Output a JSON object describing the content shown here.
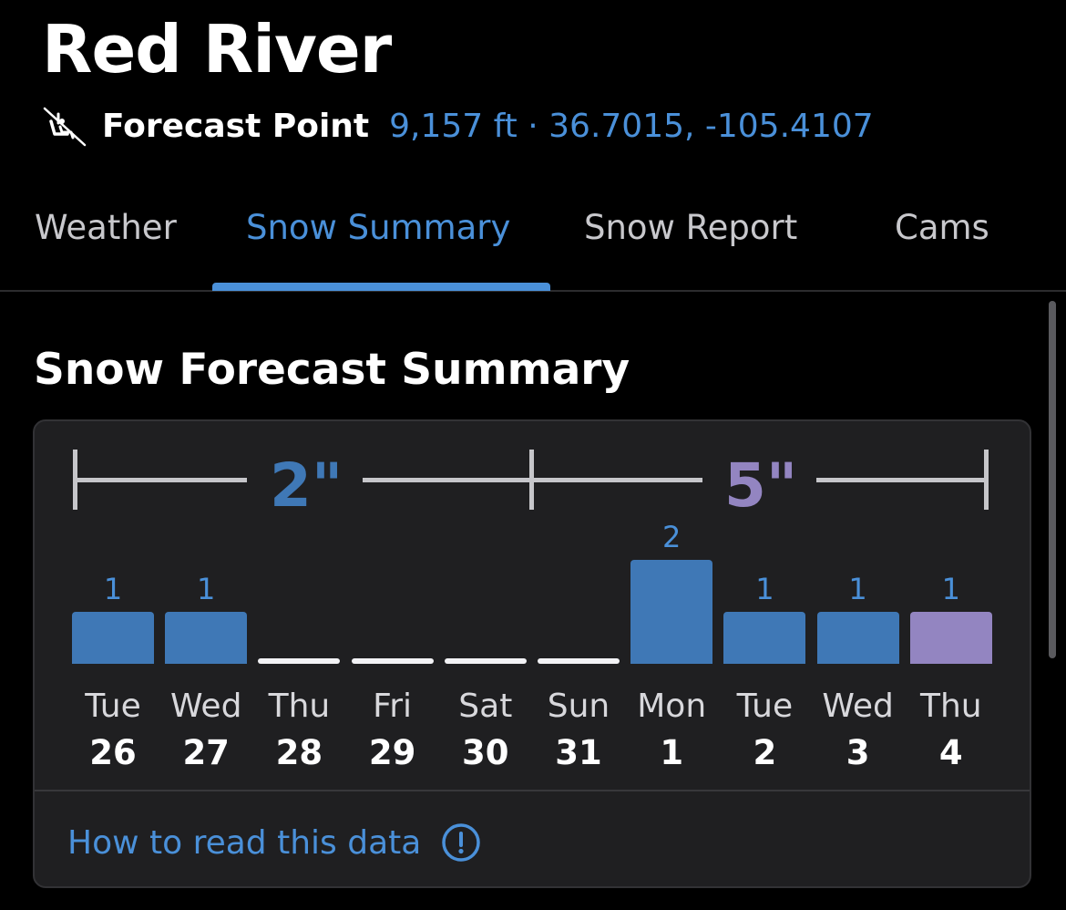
{
  "header": {
    "title": "Red River",
    "point_label": "Forecast Point",
    "point_meta": "9,157 ft · 36.7015, -105.4107",
    "lift_icon": "chairlift-icon"
  },
  "tabs": [
    {
      "label": "Weather",
      "active": false
    },
    {
      "label": "Snow Summary",
      "active": true
    },
    {
      "label": "Snow Report",
      "active": false
    },
    {
      "label": "Cams",
      "active": false
    }
  ],
  "section": {
    "title": "Snow Forecast Summary",
    "help_link": "How to read this data",
    "help_icon": "info-circle-icon"
  },
  "colors": {
    "accent": "#4a90d9",
    "bar_blue": "#3f78b6",
    "bar_purple": "#9385c1",
    "range_purple": "#9385c1"
  },
  "chart_data": {
    "type": "bar",
    "categories": [
      "Tue 26",
      "Wed 27",
      "Thu 28",
      "Fri 29",
      "Sat 30",
      "Sun 31",
      "Mon 1",
      "Tue 2",
      "Wed 3",
      "Thu 4"
    ],
    "days": [
      {
        "name": "Tue",
        "num": "26",
        "value": 1,
        "label": "1",
        "color": "blue"
      },
      {
        "name": "Wed",
        "num": "27",
        "value": 1,
        "label": "1",
        "color": "blue"
      },
      {
        "name": "Thu",
        "num": "28",
        "value": 0,
        "label": "",
        "color": "white"
      },
      {
        "name": "Fri",
        "num": "29",
        "value": 0,
        "label": "",
        "color": "white"
      },
      {
        "name": "Sat",
        "num": "30",
        "value": 0,
        "label": "",
        "color": "white"
      },
      {
        "name": "Sun",
        "num": "31",
        "value": 0,
        "label": "",
        "color": "white"
      },
      {
        "name": "Mon",
        "num": "1",
        "value": 2,
        "label": "2",
        "color": "blue"
      },
      {
        "name": "Tue",
        "num": "2",
        "value": 1,
        "label": "1",
        "color": "blue"
      },
      {
        "name": "Wed",
        "num": "3",
        "value": 1,
        "label": "1",
        "color": "blue"
      },
      {
        "name": "Thu",
        "num": "4",
        "value": 1,
        "label": "1",
        "color": "purple"
      }
    ],
    "ranges": [
      {
        "label": "2\"",
        "color": "blue",
        "days": 5
      },
      {
        "label": "5\"",
        "color": "purple",
        "days": 5
      }
    ],
    "ylim": [
      0,
      2
    ]
  }
}
